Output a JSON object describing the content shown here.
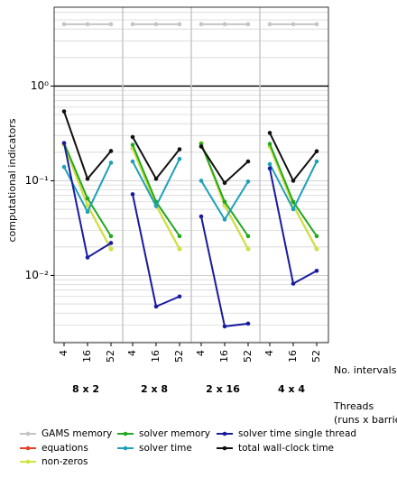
{
  "chart_data": {
    "type": "line",
    "log_y": true,
    "ylabel": "computational indicators",
    "xlabel": "No. intervals",
    "panel_axis_label": [
      "Threads",
      "(runs x barrier)"
    ],
    "panels": [
      "8 x 2",
      "2 x 8",
      "2 x 16",
      "4 x 4"
    ],
    "categories": [
      "4",
      "16",
      "52"
    ],
    "ylim": [
      0.00195,
      6.8
    ],
    "yticks": [
      {
        "value": 0.01,
        "label": "10⁻²"
      },
      {
        "value": 0.1,
        "label": "10⁻¹"
      },
      {
        "value": 1,
        "label": "10⁰"
      }
    ],
    "yminorticks": [
      0.002,
      0.003,
      0.004,
      0.005,
      0.006,
      0.007,
      0.008,
      0.009,
      0.02,
      0.03,
      0.04,
      0.05,
      0.06,
      0.07,
      0.08,
      0.09,
      0.2,
      0.3,
      0.4,
      0.5,
      0.6,
      0.7,
      0.8,
      0.9,
      2,
      3,
      4,
      5,
      6
    ],
    "hline": {
      "value": 1,
      "color": "#000000"
    },
    "grid": true,
    "series": [
      {
        "name": "GAMS memory",
        "color": "#c4c4c4",
        "values": [
          [
            4.5,
            4.5,
            4.5
          ],
          [
            4.5,
            4.5,
            4.5
          ],
          [
            4.5,
            4.5,
            4.5
          ],
          [
            4.5,
            4.5,
            4.5
          ]
        ]
      },
      {
        "name": "equations",
        "color": "#e8412a",
        "values": [
          [
            0.24,
            0.055,
            0.019
          ],
          [
            0.22,
            0.055,
            0.019
          ],
          [
            0.25,
            0.055,
            0.019
          ],
          [
            0.23,
            0.055,
            0.019
          ]
        ]
      },
      {
        "name": "non-zeros",
        "color": "#cde63a",
        "values": [
          [
            0.24,
            0.055,
            0.019
          ],
          [
            0.22,
            0.055,
            0.019
          ],
          [
            0.25,
            0.055,
            0.019
          ],
          [
            0.23,
            0.055,
            0.019
          ]
        ]
      },
      {
        "name": "solver memory",
        "color": "#22a822",
        "values": [
          [
            0.25,
            0.065,
            0.026
          ],
          [
            0.24,
            0.06,
            0.026
          ],
          [
            0.245,
            0.06,
            0.026
          ],
          [
            0.245,
            0.06,
            0.026
          ]
        ]
      },
      {
        "name": "solver time",
        "color": "#1fa0b8",
        "values": [
          [
            0.14,
            0.047,
            0.155
          ],
          [
            0.16,
            0.054,
            0.17
          ],
          [
            0.1,
            0.039,
            0.098
          ],
          [
            0.15,
            0.05,
            0.16
          ]
        ]
      },
      {
        "name": "solver time single thread",
        "color": "#1a1aa0",
        "values": [
          [
            0.25,
            0.0155,
            0.022
          ],
          [
            0.072,
            0.0047,
            0.006
          ],
          [
            0.042,
            0.0029,
            0.0031
          ],
          [
            0.135,
            0.0082,
            0.0112
          ]
        ]
      },
      {
        "name": "total wall-clock time",
        "color": "#111111",
        "values": [
          [
            0.54,
            0.105,
            0.206
          ],
          [
            0.29,
            0.105,
            0.215
          ],
          [
            0.23,
            0.095,
            0.16
          ],
          [
            0.32,
            0.1,
            0.205
          ]
        ]
      }
    ]
  }
}
